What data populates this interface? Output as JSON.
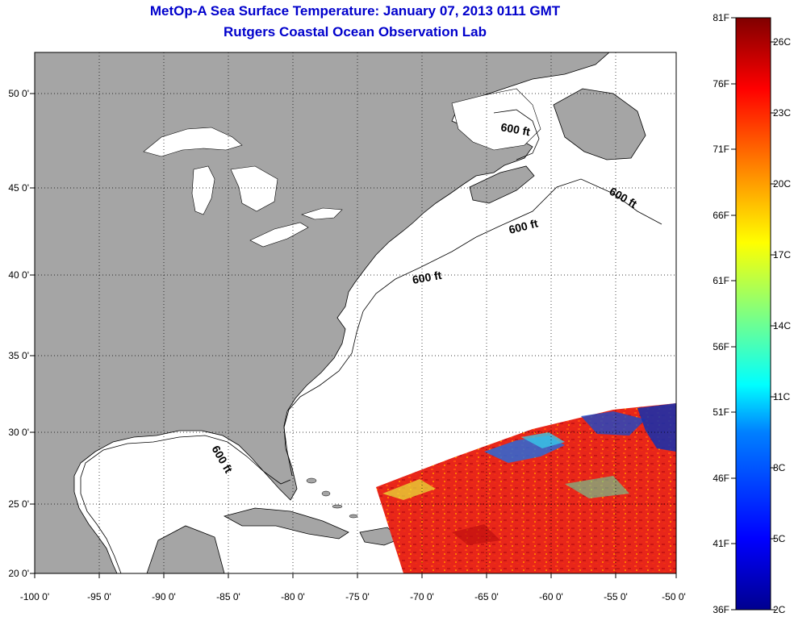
{
  "title": {
    "line1": "MetOp-A Sea Surface Temperature:  January 07, 2013 0111 GMT",
    "line2": "Rutgers Coastal Ocean Observation Lab"
  },
  "map": {
    "lat_labels": [
      "50 0'",
      "45 0'",
      "40 0'",
      "35 0'",
      "30 0'",
      "25 0'",
      "20 0'"
    ],
    "lon_labels": [
      "-100 0'",
      "-95 0'",
      "-90 0'",
      "-85 0'",
      "-80 0'",
      "-75 0'",
      "-70 0'",
      "-65 0'",
      "-60 0'",
      "-55 0'",
      "-50 0'"
    ],
    "contour_labels": [
      "600 ft",
      "600 ft",
      "600 ft",
      "600 ft",
      "600 ft"
    ],
    "land_color": "#a5a5a5",
    "ocean_color": "#ffffff",
    "grid": "dotted"
  },
  "colorbar": {
    "fahrenheit_labels": [
      "81F",
      "76F",
      "71F",
      "66F",
      "61F",
      "56F",
      "51F",
      "46F",
      "41F",
      "36F"
    ],
    "celsius_labels": [
      "26C",
      "23C",
      "20C",
      "17C",
      "14C",
      "11C",
      "8C",
      "5C",
      "2C"
    ],
    "colormap": "jet",
    "colors": [
      "#00008f",
      "#0000ff",
      "#0080ff",
      "#00ffff",
      "#80ff80",
      "#ffff00",
      "#ff8000",
      "#ff0000",
      "#800000"
    ]
  }
}
